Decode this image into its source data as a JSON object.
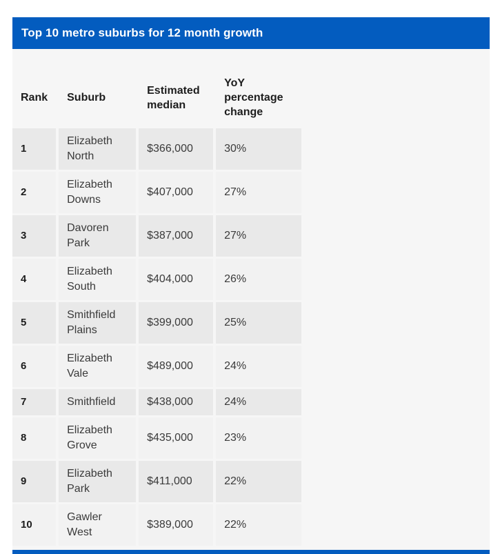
{
  "title_bar": {
    "title": "Top 10 metro suburbs for 12 month growth"
  },
  "colors": {
    "accent_blue": "#035cbf",
    "body_bg": "#f6f6f6",
    "row_odd_bg": "#e9e9e9",
    "row_even_bg": "#f2f2f2",
    "heading_text": "#1d1d1d",
    "cell_text": "#3a3a3a",
    "title_text": "#ffffff"
  },
  "table": {
    "columns": [
      "Rank",
      "Suburb",
      "Estimated median",
      "YoY percentage change"
    ],
    "rows": [
      {
        "rank": "1",
        "suburb": "Elizabeth North",
        "estimated_median": "$366,000",
        "yoy_change": "30%"
      },
      {
        "rank": "2",
        "suburb": "Elizabeth Downs",
        "estimated_median": "$407,000",
        "yoy_change": "27%"
      },
      {
        "rank": "3",
        "suburb": "Davoren Park",
        "estimated_median": "$387,000",
        "yoy_change": "27%"
      },
      {
        "rank": "4",
        "suburb": "Elizabeth South",
        "estimated_median": "$404,000",
        "yoy_change": "26%"
      },
      {
        "rank": "5",
        "suburb": "Smithfield Plains",
        "estimated_median": "$399,000",
        "yoy_change": "25%"
      },
      {
        "rank": "6",
        "suburb": "Elizabeth Vale",
        "estimated_median": "$489,000",
        "yoy_change": "24%"
      },
      {
        "rank": "7",
        "suburb": "Smithfield",
        "estimated_median": "$438,000",
        "yoy_change": "24%"
      },
      {
        "rank": "8",
        "suburb": "Elizabeth Grove",
        "estimated_median": "$435,000",
        "yoy_change": "23%"
      },
      {
        "rank": "9",
        "suburb": "Elizabeth Park",
        "estimated_median": "$411,000",
        "yoy_change": "22%"
      },
      {
        "rank": "10",
        "suburb": "Gawler West",
        "estimated_median": "$389,000",
        "yoy_change": "22%"
      }
    ]
  }
}
